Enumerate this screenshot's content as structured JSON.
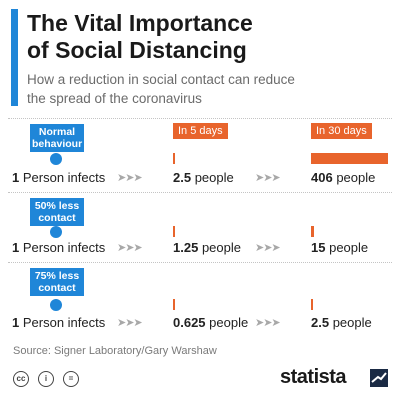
{
  "header": {
    "title_line1": "The Vital Importance",
    "title_line2": "of Social Distancing",
    "subtitle_line1": "How a reduction in social contact can reduce",
    "subtitle_line2": "the spread of the coronavirus"
  },
  "chart_data": {
    "type": "bar",
    "periods": [
      "In 5 days",
      "In 30 days"
    ],
    "unit": "people",
    "baseline_label": "Person infects",
    "baseline_value": "1",
    "rows": [
      {
        "scenario_line1": "Normal",
        "scenario_line2": "behaviour",
        "in_5_days": 2.5,
        "in_5_days_label": "2.5",
        "in_30_days": 406,
        "in_30_days_label": "406"
      },
      {
        "scenario_line1": "50% less",
        "scenario_line2": "contact",
        "in_5_days": 1.25,
        "in_5_days_label": "1.25",
        "in_30_days": 15,
        "in_30_days_label": "15"
      },
      {
        "scenario_line1": "75% less",
        "scenario_line2": "contact",
        "in_5_days": 0.625,
        "in_5_days_label": "0.625",
        "in_30_days": 2.5,
        "in_30_days_label": "2.5"
      }
    ],
    "colors": {
      "scenario": "#1f86d8",
      "bars": "#e8642c",
      "arrows": "#a8a8a8"
    }
  },
  "footer": {
    "source": "Source: Signer Laboratory/Gary Warshaw",
    "license_icons": [
      "cc",
      "by",
      "nd"
    ],
    "license_icon_labels": [
      "cc",
      "i",
      "="
    ],
    "brand": "statista"
  }
}
